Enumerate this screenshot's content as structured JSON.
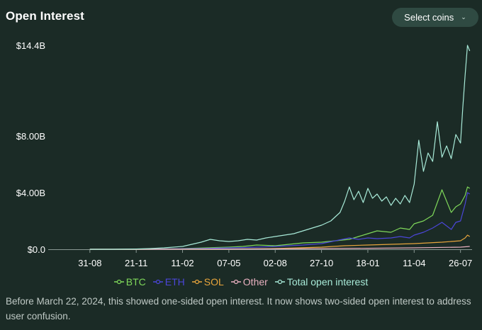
{
  "header": {
    "title": "Open Interest",
    "select_label": "Select coins",
    "select_icon": "chevron-down-icon"
  },
  "colors": {
    "background": "#1b2b26",
    "BTC": "#7fd85a",
    "ETH": "#4b46d8",
    "SOL": "#e8a53c",
    "Other": "#e9b0c0",
    "Total open interest": "#a8ead8"
  },
  "chart_data": {
    "type": "line",
    "title": "Open Interest",
    "xlabel": "",
    "ylabel": "",
    "ylim": [
      0,
      14.4
    ],
    "y_unit": "$B",
    "y_ticks": [
      {
        "value": 0,
        "label": "$0.0"
      },
      {
        "value": 4.0,
        "label": "$4.00B"
      },
      {
        "value": 8.0,
        "label": "$8.00B"
      },
      {
        "value": 14.4,
        "label": "$14.4B"
      }
    ],
    "x_ticks": [
      "31-08",
      "21-11",
      "11-02",
      "07-05",
      "02-08",
      "27-10",
      "18-01",
      "11-04",
      "26-07"
    ],
    "grid": false,
    "legend_position": "bottom",
    "series": [
      {
        "name": "BTC",
        "x": [
          0,
          0.5,
          1,
          1.5,
          2,
          2.5,
          3,
          3.3,
          3.6,
          4,
          4.3,
          4.6,
          5,
          5.3,
          5.6,
          5.8,
          6,
          6.2,
          6.5,
          6.7,
          6.9,
          7,
          7.2,
          7.4,
          7.6,
          7.8,
          7.9,
          8,
          8.1,
          8.15,
          8.2
        ],
        "values": [
          0,
          0,
          0.01,
          0.02,
          0.05,
          0.1,
          0.15,
          0.2,
          0.3,
          0.25,
          0.35,
          0.45,
          0.5,
          0.6,
          0.7,
          0.9,
          1.1,
          1.3,
          1.2,
          1.5,
          1.4,
          1.8,
          2.0,
          2.4,
          4.2,
          2.6,
          3.0,
          3.2,
          3.8,
          4.4,
          4.3
        ]
      },
      {
        "name": "ETH",
        "x": [
          0,
          0.5,
          1,
          1.5,
          2,
          2.5,
          3,
          3.3,
          3.6,
          4,
          4.3,
          4.6,
          5,
          5.3,
          5.6,
          5.8,
          6,
          6.2,
          6.5,
          6.7,
          6.9,
          7,
          7.2,
          7.4,
          7.6,
          7.8,
          7.9,
          8,
          8.1,
          8.15,
          8.2
        ],
        "values": [
          0,
          0,
          0.01,
          0.02,
          0.04,
          0.06,
          0.1,
          0.12,
          0.15,
          0.2,
          0.25,
          0.3,
          0.4,
          0.6,
          0.8,
          0.7,
          0.8,
          0.75,
          0.8,
          0.9,
          0.8,
          1.0,
          1.2,
          1.5,
          1.9,
          1.4,
          1.9,
          2.0,
          3.2,
          4.0,
          3.9
        ]
      },
      {
        "name": "SOL",
        "x": [
          0,
          1,
          2,
          3,
          4,
          4.5,
          5,
          5.5,
          6,
          6.5,
          7,
          7.3,
          7.6,
          7.8,
          8,
          8.1,
          8.15,
          8.2
        ],
        "values": [
          0,
          0,
          0.01,
          0.02,
          0.05,
          0.1,
          0.15,
          0.25,
          0.3,
          0.35,
          0.4,
          0.45,
          0.5,
          0.55,
          0.6,
          0.8,
          1.0,
          0.9
        ]
      },
      {
        "name": "Other",
        "x": [
          0,
          1,
          2,
          3,
          4,
          5,
          6,
          7,
          8,
          8.2
        ],
        "values": [
          0,
          0,
          0.01,
          0.02,
          0.03,
          0.05,
          0.07,
          0.1,
          0.15,
          0.2
        ]
      },
      {
        "name": "Total open interest",
        "x": [
          0,
          0.5,
          1,
          1.3,
          1.6,
          2,
          2.2,
          2.4,
          2.6,
          2.8,
          3,
          3.2,
          3.4,
          3.6,
          3.8,
          4,
          4.2,
          4.4,
          4.6,
          4.8,
          5,
          5.2,
          5.4,
          5.5,
          5.6,
          5.7,
          5.8,
          5.9,
          6,
          6.1,
          6.2,
          6.3,
          6.4,
          6.5,
          6.6,
          6.7,
          6.8,
          6.9,
          7,
          7.1,
          7.2,
          7.3,
          7.4,
          7.5,
          7.6,
          7.7,
          7.8,
          7.9,
          8,
          8.05,
          8.1,
          8.15,
          8.2
        ],
        "values": [
          0,
          0,
          0.02,
          0.05,
          0.1,
          0.2,
          0.35,
          0.5,
          0.7,
          0.6,
          0.55,
          0.6,
          0.7,
          0.65,
          0.8,
          0.9,
          1.0,
          1.1,
          1.3,
          1.5,
          1.7,
          2.0,
          2.6,
          3.4,
          4.4,
          3.5,
          4.1,
          3.3,
          4.3,
          3.6,
          3.9,
          3.4,
          3.7,
          3.1,
          3.6,
          3.2,
          3.8,
          3.3,
          4.6,
          7.7,
          5.5,
          6.8,
          6.2,
          9.0,
          6.5,
          7.3,
          6.4,
          8.1,
          7.5,
          10.0,
          12.3,
          14.4,
          14.0
        ]
      }
    ]
  },
  "legend": [
    {
      "label": "BTC",
      "color": "#7fd85a"
    },
    {
      "label": "ETH",
      "color": "#4b46d8"
    },
    {
      "label": "SOL",
      "color": "#e8a53c"
    },
    {
      "label": "Other",
      "color": "#e9b0c0"
    },
    {
      "label": "Total open interest",
      "color": "#a8ead8"
    }
  ],
  "footer": {
    "note": "Before March 22, 2024, this showed one-sided open interest. It now shows two-sided open interest to address user confusion."
  }
}
